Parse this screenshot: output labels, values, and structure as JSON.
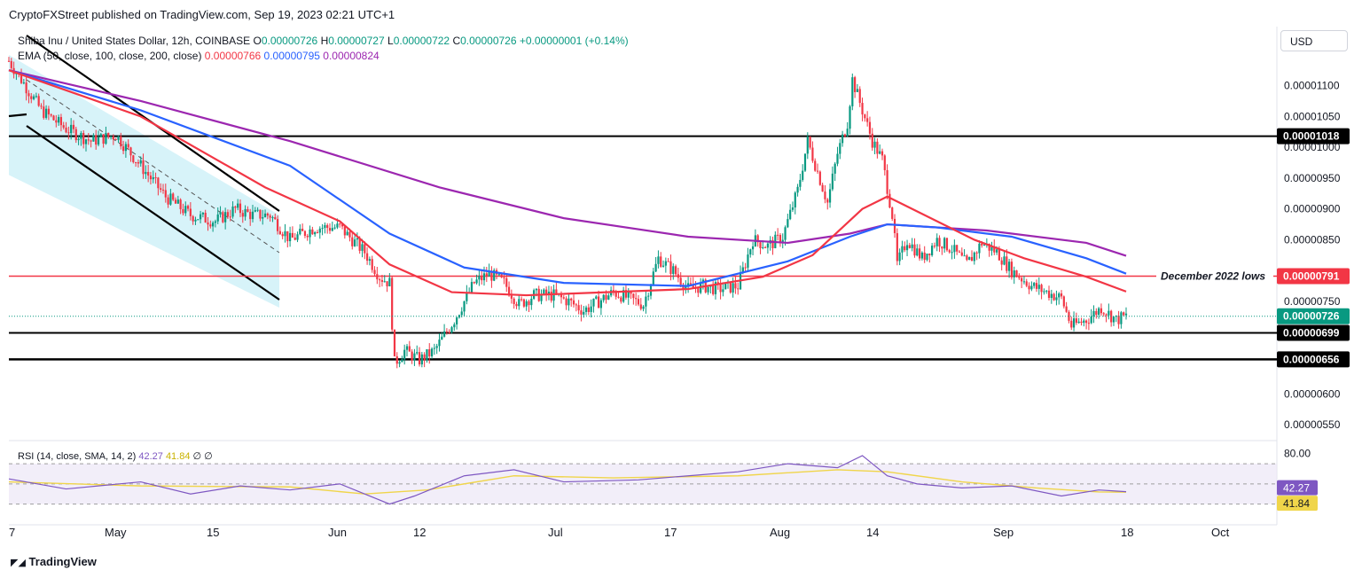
{
  "publisher": "CryptoFXStreet published on TradingView.com, Sep 19, 2023 02:21 UTC+1",
  "legend": {
    "symbol": "Shiba Inu / United States Dollar, 12h, COINBASE",
    "o_label": "O",
    "o": "0.00000726",
    "h_label": "H",
    "h": "0.00000727",
    "l_label": "L",
    "l": "0.00000722",
    "c_label": "C",
    "c": "0.00000726",
    "change": "+0.00000001 (+0.14%)",
    "ema_label": "EMA (50, close, 100, close, 200, close)",
    "ema50": "0.00000766",
    "ema100": "0.00000795",
    "ema200": "0.00000824",
    "rsi_label": "RSI (14, close, SMA, 14, 2)",
    "rsi": "42.27",
    "rsi_sma": "41.84",
    "rsi_extra": "∅  ∅"
  },
  "currency_button": "USD",
  "footer_logo": "TradingView",
  "annotation": "December 2022 lows",
  "colors": {
    "up": "#089981",
    "down": "#f23645",
    "ema50": "#f23645",
    "ema100": "#2962ff",
    "ema200": "#9c27b0",
    "rsi": "#7e57c2",
    "rsi_sma": "#f0d54a",
    "channel_fill": "#d7f3f9"
  },
  "chart_data": {
    "type": "candlestick",
    "title": "Shiba Inu / United States Dollar, 12h, COINBASE",
    "y_ticks": [
      "0.00001100",
      "0.00001050",
      "0.00001000",
      "0.00000950",
      "0.00000900",
      "0.00000850",
      "0.00000750",
      "0.00000600",
      "0.00000550"
    ],
    "x_ticks": [
      "7",
      "May",
      "15",
      "Jun",
      "12",
      "Jul",
      "17",
      "Aug",
      "14",
      "Sep",
      "18",
      "Oct"
    ],
    "ylim": [
      5.3e-06,
      1.19e-05
    ],
    "horizontal_levels": [
      {
        "value": 1.018e-05,
        "label": "0.00001018",
        "color": "#000000"
      },
      {
        "value": 7.91e-06,
        "label": "0.00000791",
        "color": "#f23645"
      },
      {
        "value": 6.99e-06,
        "label": "0.00000699",
        "color": "#000000"
      },
      {
        "value": 6.56e-06,
        "label": "0.00000656",
        "color": "#000000"
      }
    ],
    "last_price": {
      "value": 7.26e-06,
      "label": "0.00000726"
    },
    "price_path": [
      [
        7,
        11.4
      ],
      [
        12,
        11.1
      ],
      [
        20,
        10.6
      ],
      [
        30,
        10.3
      ],
      [
        40,
        10.1
      ],
      [
        50,
        10.2
      ],
      [
        60,
        9.7
      ],
      [
        70,
        9.2
      ],
      [
        80,
        8.9
      ],
      [
        90,
        8.8
      ],
      [
        98,
        9.0
      ],
      [
        105,
        8.9
      ],
      [
        112,
        8.9
      ],
      [
        120,
        8.5
      ],
      [
        130,
        8.7
      ],
      [
        140,
        8.7
      ],
      [
        150,
        8.3
      ],
      [
        156,
        7.9
      ],
      [
        160,
        7.8
      ],
      [
        162,
        6.5
      ],
      [
        166,
        6.7
      ],
      [
        172,
        6.55
      ],
      [
        178,
        6.7
      ],
      [
        186,
        7.2
      ],
      [
        194,
        7.8
      ],
      [
        200,
        7.95
      ],
      [
        206,
        7.8
      ],
      [
        212,
        7.45
      ],
      [
        218,
        7.6
      ],
      [
        226,
        7.6
      ],
      [
        232,
        7.5
      ],
      [
        238,
        7.35
      ],
      [
        244,
        7.5
      ],
      [
        250,
        7.65
      ],
      [
        256,
        7.55
      ],
      [
        262,
        7.45
      ],
      [
        268,
        8.2
      ],
      [
        274,
        8.0
      ],
      [
        280,
        7.7
      ],
      [
        286,
        7.75
      ],
      [
        292,
        7.7
      ],
      [
        300,
        7.75
      ],
      [
        306,
        8.5
      ],
      [
        312,
        8.4
      ],
      [
        318,
        8.55
      ],
      [
        324,
        9.3
      ],
      [
        328,
        10.1
      ],
      [
        332,
        9.6
      ],
      [
        336,
        9.1
      ],
      [
        340,
        9.9
      ],
      [
        344,
        10.4
      ],
      [
        346,
        11.1
      ],
      [
        350,
        10.6
      ],
      [
        354,
        10.1
      ],
      [
        358,
        9.8
      ],
      [
        362,
        8.9
      ],
      [
        364,
        8.1
      ],
      [
        368,
        8.5
      ],
      [
        374,
        8.2
      ],
      [
        380,
        8.5
      ],
      [
        386,
        8.35
      ],
      [
        392,
        8.1
      ],
      [
        398,
        8.45
      ],
      [
        404,
        8.3
      ],
      [
        410,
        8.0
      ],
      [
        418,
        7.75
      ],
      [
        424,
        7.65
      ],
      [
        430,
        7.55
      ],
      [
        434,
        7.1
      ],
      [
        440,
        7.2
      ],
      [
        446,
        7.4
      ],
      [
        452,
        7.2
      ],
      [
        456,
        7.26
      ]
    ],
    "ema50_path": [
      [
        7,
        11.25
      ],
      [
        60,
        10.5
      ],
      [
        110,
        9.35
      ],
      [
        140,
        8.8
      ],
      [
        160,
        8.1
      ],
      [
        185,
        7.65
      ],
      [
        215,
        7.6
      ],
      [
        280,
        7.7
      ],
      [
        310,
        7.9
      ],
      [
        330,
        8.25
      ],
      [
        350,
        9.0
      ],
      [
        360,
        9.2
      ],
      [
        375,
        8.9
      ],
      [
        395,
        8.5
      ],
      [
        415,
        8.2
      ],
      [
        440,
        7.9
      ],
      [
        456,
        7.66
      ]
    ],
    "ema100_path": [
      [
        7,
        11.25
      ],
      [
        60,
        10.6
      ],
      [
        120,
        9.7
      ],
      [
        160,
        8.6
      ],
      [
        190,
        8.05
      ],
      [
        230,
        7.8
      ],
      [
        280,
        7.75
      ],
      [
        320,
        8.15
      ],
      [
        345,
        8.55
      ],
      [
        360,
        8.75
      ],
      [
        380,
        8.7
      ],
      [
        410,
        8.55
      ],
      [
        440,
        8.2
      ],
      [
        456,
        7.95
      ]
    ],
    "ema200_path": [
      [
        7,
        11.25
      ],
      [
        60,
        10.75
      ],
      [
        120,
        10.1
      ],
      [
        180,
        9.35
      ],
      [
        230,
        8.85
      ],
      [
        280,
        8.55
      ],
      [
        320,
        8.45
      ],
      [
        345,
        8.6
      ],
      [
        360,
        8.75
      ],
      [
        400,
        8.65
      ],
      [
        440,
        8.45
      ],
      [
        456,
        8.24
      ]
    ],
    "rsi": {
      "y_ticks": [
        "80.00"
      ],
      "current": "42.27",
      "sma": "41.84",
      "path": [
        [
          7,
          55
        ],
        [
          30,
          45
        ],
        [
          60,
          52
        ],
        [
          80,
          40
        ],
        [
          100,
          48
        ],
        [
          120,
          44
        ],
        [
          140,
          50
        ],
        [
          160,
          30
        ],
        [
          170,
          38
        ],
        [
          190,
          58
        ],
        [
          210,
          64
        ],
        [
          230,
          52
        ],
        [
          260,
          54
        ],
        [
          280,
          58
        ],
        [
          300,
          62
        ],
        [
          320,
          70
        ],
        [
          340,
          66
        ],
        [
          350,
          78
        ],
        [
          360,
          58
        ],
        [
          372,
          50
        ],
        [
          390,
          46
        ],
        [
          410,
          48
        ],
        [
          430,
          38
        ],
        [
          445,
          44
        ],
        [
          456,
          42.27
        ]
      ],
      "sma_path": [
        [
          7,
          52
        ],
        [
          60,
          48
        ],
        [
          120,
          47
        ],
        [
          150,
          40
        ],
        [
          175,
          44
        ],
        [
          210,
          58
        ],
        [
          250,
          56
        ],
        [
          300,
          58
        ],
        [
          340,
          64
        ],
        [
          360,
          62
        ],
        [
          390,
          52
        ],
        [
          420,
          46
        ],
        [
          445,
          42
        ],
        [
          456,
          41.84
        ]
      ]
    }
  }
}
